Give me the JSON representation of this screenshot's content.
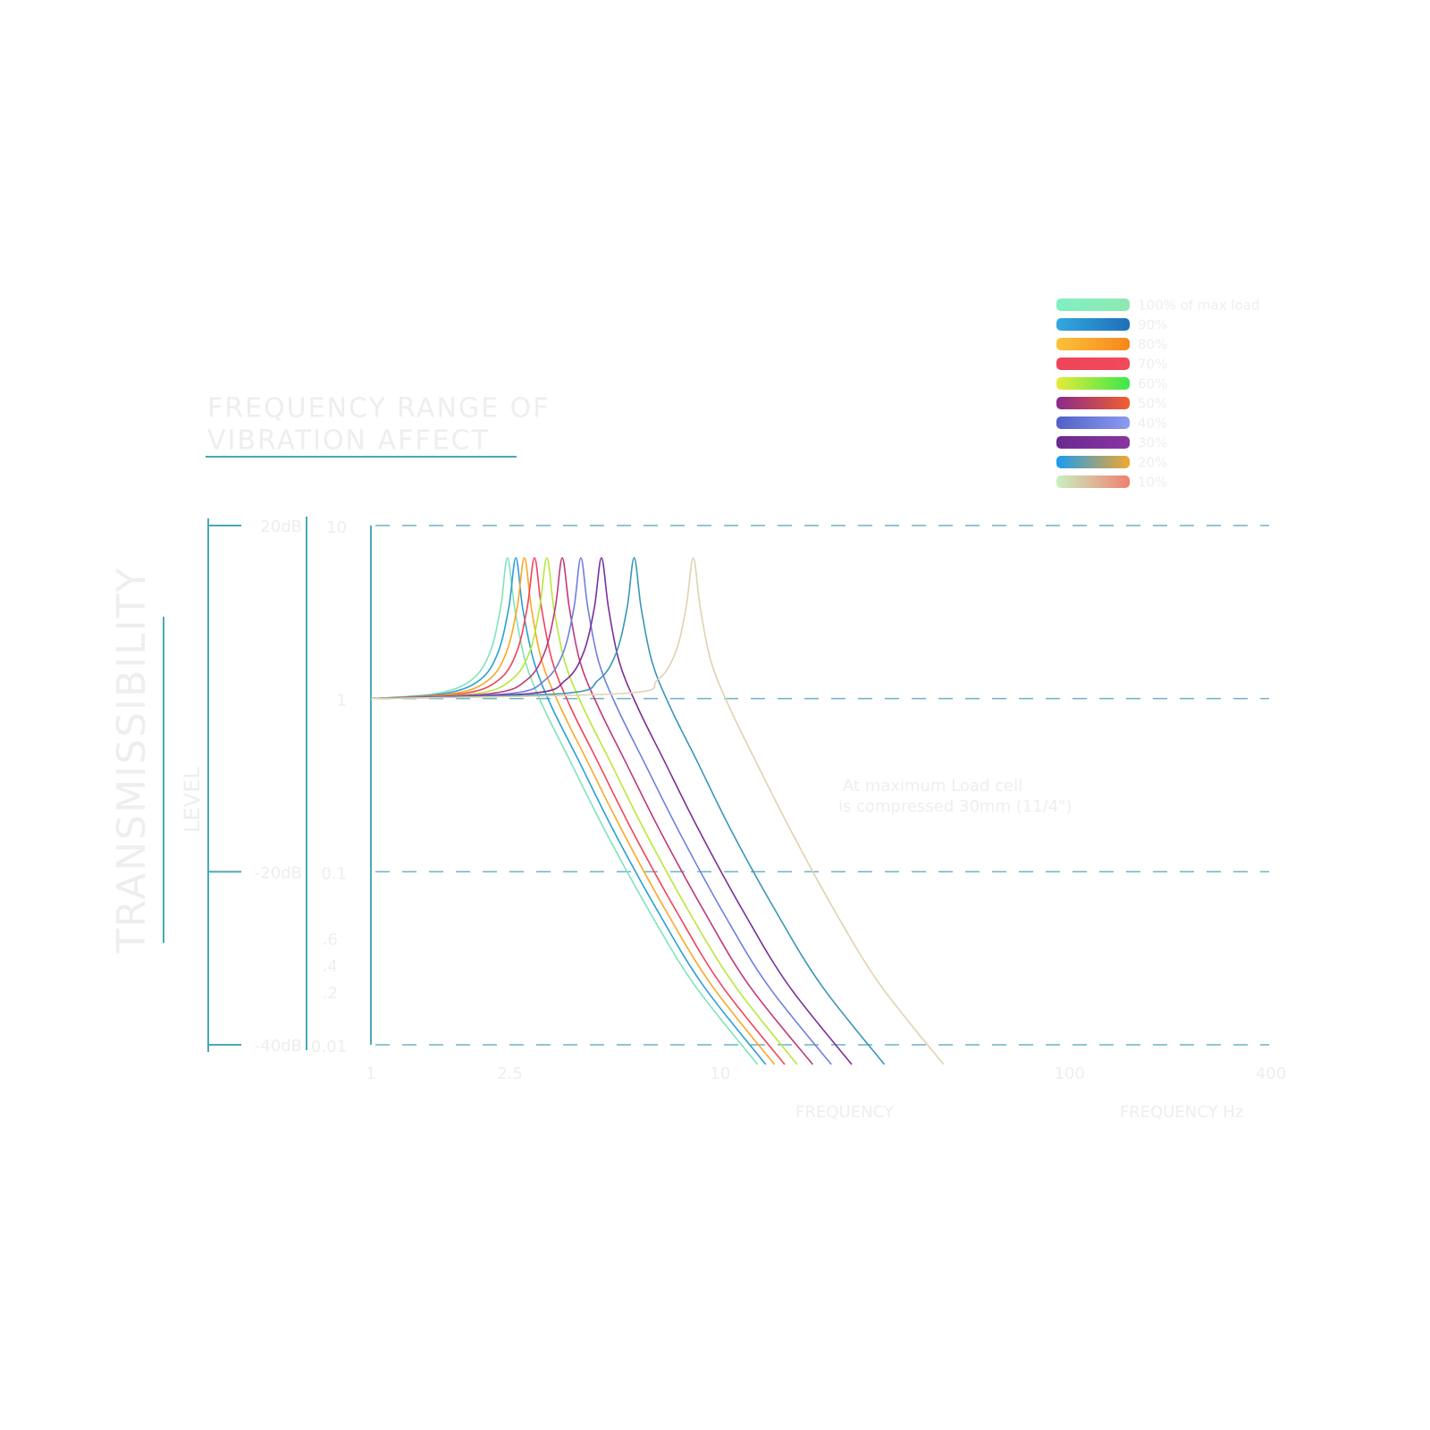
{
  "chart_data": {
    "type": "line",
    "title": "FREQUENCY RANGE OF",
    "subtitle": "VIBRATION AFFECT",
    "y_label": "TRANSMISSIBILITY",
    "y_label2": "LEVEL",
    "x_label": "FREQUENCY",
    "x_label2": "FREQUENCY Hz",
    "annotation": [
      "At maximum Load cell",
      "is compressed 30mm (11/4\")"
    ],
    "log_x": true,
    "log_y": true,
    "grid": true,
    "legend": "top-right",
    "xlim": [
      1,
      400
    ],
    "xticks": [
      1,
      2.5,
      10,
      100,
      400
    ],
    "ylim": [
      0.01,
      10
    ],
    "yticks": [
      10,
      1,
      0.1,
      0.01
    ],
    "y_minor_labels": [
      ".6",
      ".4",
      ".2"
    ],
    "y2ticks": [
      {
        "value": 20,
        "label": "20dB"
      },
      {
        "value": -20,
        "label": "-20dB"
      },
      {
        "value": -40,
        "label": "-40dB"
      }
    ],
    "series": [
      {
        "name": "100% of max load",
        "color": "#7fe3bd",
        "gradient": [
          "#7ff0c4",
          "#8fe8b0"
        ],
        "x": [
          1,
          1.54,
          1.94,
          2.19,
          2.35,
          2.46,
          2.58,
          2.77,
          3.11,
          3.71,
          4.7,
          6.3,
          8.46,
          12.8
        ],
        "values": [
          1,
          1.07,
          1.28,
          1.84,
          3.33,
          6.5,
          3.33,
          1.63,
          0.9,
          0.44,
          0.17,
          0.058,
          0.022,
          0.0077
        ]
      },
      {
        "name": "90%",
        "color": "#2a9fd6",
        "gradient": [
          "#33a8e0",
          "#1f6fb8"
        ],
        "x": [
          1,
          1.62,
          2.05,
          2.31,
          2.48,
          2.6,
          2.72,
          2.93,
          3.29,
          3.93,
          4.97,
          6.66,
          8.94,
          13.5
        ],
        "values": [
          1,
          1.07,
          1.28,
          1.84,
          3.33,
          6.5,
          3.33,
          1.63,
          0.9,
          0.44,
          0.17,
          0.058,
          0.022,
          0.0077
        ]
      },
      {
        "name": "80%",
        "color": "#f9a825",
        "gradient": [
          "#fcc23a",
          "#f7861c"
        ],
        "x": [
          1,
          1.72,
          2.17,
          2.44,
          2.62,
          2.75,
          2.88,
          3.09,
          3.48,
          4.15,
          5.26,
          7.04,
          9.46,
          14.3
        ],
        "values": [
          1,
          1.07,
          1.28,
          1.84,
          3.33,
          6.5,
          3.33,
          1.63,
          0.9,
          0.44,
          0.17,
          0.058,
          0.022,
          0.0077
        ]
      },
      {
        "name": "70%",
        "color": "#f0435a",
        "gradient": [
          "#f0435a",
          "#f04a5a"
        ],
        "x": [
          1,
          1.83,
          2.32,
          2.61,
          2.8,
          2.94,
          3.08,
          3.31,
          3.72,
          4.44,
          5.62,
          7.53,
          10.1,
          15.3
        ],
        "values": [
          1,
          1.07,
          1.28,
          1.84,
          3.33,
          6.5,
          3.33,
          1.63,
          0.9,
          0.44,
          0.17,
          0.058,
          0.022,
          0.0077
        ]
      },
      {
        "name": "60%",
        "color": "#b8e83a",
        "gradient": [
          "#e6ea3a",
          "#3ae84a"
        ],
        "x": [
          1,
          1.99,
          2.52,
          2.84,
          3.04,
          3.19,
          3.34,
          3.59,
          4.04,
          4.82,
          6.1,
          8.17,
          11,
          16.6
        ],
        "values": [
          1,
          1.07,
          1.28,
          1.84,
          3.33,
          6.5,
          3.33,
          1.63,
          0.9,
          0.44,
          0.17,
          0.058,
          0.022,
          0.0077
        ]
      },
      {
        "name": "50%",
        "color": "#c0387a",
        "gradient": [
          "#8a2a8a",
          "#f06030"
        ],
        "x": [
          1,
          2.2,
          2.79,
          3.14,
          3.37,
          3.53,
          3.7,
          3.97,
          4.47,
          5.33,
          6.75,
          9.04,
          12.1,
          18.4
        ],
        "values": [
          1,
          1.07,
          1.28,
          1.84,
          3.33,
          6.5,
          3.33,
          1.63,
          0.9,
          0.44,
          0.17,
          0.058,
          0.022,
          0.0077
        ]
      },
      {
        "name": "40%",
        "color": "#6f7fe0",
        "gradient": [
          "#5060c8",
          "#8c9cf0"
        ],
        "x": [
          1,
          2.49,
          3.15,
          3.55,
          3.81,
          3.99,
          4.18,
          4.49,
          5.05,
          6.02,
          7.63,
          10.2,
          13.7,
          20.8
        ],
        "values": [
          1,
          1.07,
          1.28,
          1.84,
          3.33,
          6.5,
          3.33,
          1.63,
          0.9,
          0.44,
          0.17,
          0.058,
          0.022,
          0.0077
        ]
      },
      {
        "name": "30%",
        "color": "#7a2f9a",
        "gradient": [
          "#6a2a90",
          "#8a34a0"
        ],
        "x": [
          1,
          2.85,
          3.61,
          4.06,
          4.36,
          4.57,
          4.79,
          5.14,
          5.79,
          6.9,
          8.74,
          11.7,
          15.7,
          23.8
        ],
        "values": [
          1,
          1.07,
          1.28,
          1.84,
          3.33,
          6.5,
          3.33,
          1.63,
          0.9,
          0.44,
          0.17,
          0.058,
          0.022,
          0.0077
        ]
      },
      {
        "name": "20%",
        "color": "#3a96b8",
        "gradient": [
          "#1a9cf0",
          "#f0a830"
        ],
        "x": [
          1,
          3.54,
          4.48,
          5.04,
          5.41,
          5.67,
          5.94,
          6.38,
          7.18,
          8.56,
          10.8,
          14.5,
          19.5,
          29.5
        ],
        "values": [
          1,
          1.07,
          1.28,
          1.84,
          3.33,
          6.5,
          3.33,
          1.63,
          0.9,
          0.44,
          0.17,
          0.058,
          0.022,
          0.0077
        ]
      },
      {
        "name": "10%",
        "color": "#e0d2b0",
        "gradient": [
          "#c8f0c0",
          "#f08070"
        ],
        "x": [
          1,
          5.22,
          6.61,
          7.44,
          7.98,
          8.37,
          8.77,
          9.42,
          10.6,
          12.6,
          16,
          21.4,
          28.8,
          43.6
        ],
        "values": [
          1,
          1.07,
          1.28,
          1.84,
          3.33,
          6.5,
          3.33,
          1.63,
          0.9,
          0.44,
          0.17,
          0.058,
          0.022,
          0.0077
        ]
      }
    ]
  }
}
